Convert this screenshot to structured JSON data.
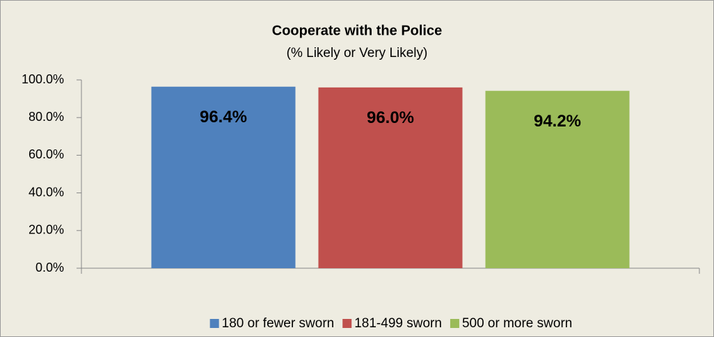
{
  "chart_data": {
    "type": "bar",
    "title": "Cooperate with the Police",
    "subtitle": "(% Likely or Very Likely)",
    "categories": [
      null
    ],
    "series": [
      {
        "name": "180 or fewer sworn",
        "color": "#4f81bd",
        "values": [
          96.4
        ],
        "value_labels": [
          "96.4%"
        ]
      },
      {
        "name": "181-499 sworn",
        "color": "#c0504d",
        "values": [
          96.0
        ],
        "value_labels": [
          "96.0%"
        ]
      },
      {
        "name": "500 or more sworn",
        "color": "#9bbb59",
        "values": [
          94.2
        ],
        "value_labels": [
          "94.2%"
        ]
      }
    ],
    "ylim": [
      0,
      100
    ],
    "yticks": [
      {
        "value": 0,
        "label": "0.0%"
      },
      {
        "value": 20,
        "label": "20.0%"
      },
      {
        "value": 40,
        "label": "40.0%"
      },
      {
        "value": 60,
        "label": "60.0%"
      },
      {
        "value": 80,
        "label": "80.0%"
      },
      {
        "value": 100,
        "label": "100.0%"
      }
    ],
    "grid": false,
    "legend": "bottom"
  }
}
